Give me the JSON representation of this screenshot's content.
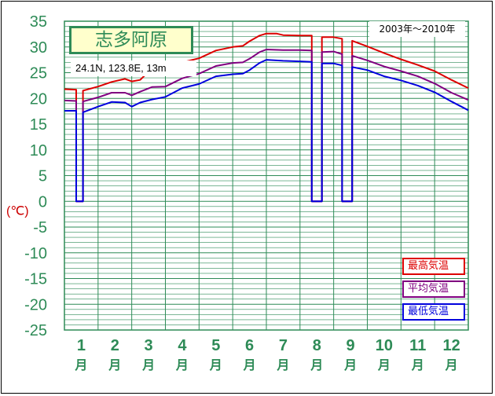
{
  "title": "志多阿原",
  "location": "24.1N, 123.8E, 13m",
  "period": "2003年〜2010年",
  "unit_label": "(℃)",
  "colors": {
    "max": "#dd0000",
    "mean": "#800080",
    "min": "#0000dd",
    "grid": "#2e8b57",
    "text": "#2e8b57"
  },
  "chart_data": {
    "type": "line",
    "title": "志多阿原",
    "ylim": [
      -25,
      35
    ],
    "yticks": [
      "35",
      "30",
      "25",
      "20",
      "15",
      "10",
      "5",
      "0",
      "-5",
      "-10",
      "-15",
      "-20",
      "-25"
    ],
    "xticks": [
      "1",
      "2",
      "3",
      "4",
      "5",
      "6",
      "7",
      "8",
      "9",
      "10",
      "11",
      "12"
    ],
    "x_unit": "月",
    "grid": true,
    "legend": "bottom-right",
    "series": [
      {
        "name": "最高気温",
        "color": "#dd0000",
        "points": [
          [
            0,
            21.8
          ],
          [
            0.35,
            21.7
          ],
          [
            0.35,
            0
          ],
          [
            0.55,
            0
          ],
          [
            0.55,
            21.5
          ],
          [
            1.0,
            22.3
          ],
          [
            1.4,
            23.2
          ],
          [
            1.8,
            23.8
          ],
          [
            2.0,
            23.3
          ],
          [
            2.25,
            23.6
          ],
          [
            2.55,
            25.5
          ],
          [
            3.0,
            25.6
          ],
          [
            3.2,
            26.4
          ],
          [
            3.5,
            27
          ],
          [
            4.0,
            27.8
          ],
          [
            4.5,
            29.3
          ],
          [
            5.0,
            30
          ],
          [
            5.3,
            30.2
          ],
          [
            5.5,
            31.1
          ],
          [
            5.8,
            32.2
          ],
          [
            6.0,
            32.6
          ],
          [
            6.3,
            32.6
          ],
          [
            6.5,
            32.3
          ],
          [
            7.0,
            32.2
          ],
          [
            7.35,
            32.2
          ],
          [
            7.35,
            0
          ],
          [
            7.65,
            0
          ],
          [
            7.65,
            31.9
          ],
          [
            8.0,
            31.9
          ],
          [
            8.25,
            31.6
          ],
          [
            8.25,
            0
          ],
          [
            8.55,
            0
          ],
          [
            8.55,
            31.2
          ],
          [
            9.0,
            30.1
          ],
          [
            9.5,
            28.8
          ],
          [
            10.0,
            27.6
          ],
          [
            10.5,
            26.5
          ],
          [
            11.0,
            25.3
          ],
          [
            11.5,
            23.6
          ],
          [
            12.0,
            22
          ]
        ]
      },
      {
        "name": "平均気温",
        "color": "#800080",
        "points": [
          [
            0,
            19.6
          ],
          [
            0.35,
            19.5
          ],
          [
            0.35,
            0
          ],
          [
            0.55,
            0
          ],
          [
            0.55,
            19.4
          ],
          [
            1.0,
            20.2
          ],
          [
            1.4,
            21.1
          ],
          [
            1.8,
            21.1
          ],
          [
            2.0,
            20.6
          ],
          [
            2.25,
            21.3
          ],
          [
            2.6,
            22.2
          ],
          [
            3.0,
            22.3
          ],
          [
            3.5,
            23.9
          ],
          [
            4.0,
            24.8
          ],
          [
            4.5,
            26.3
          ],
          [
            5.0,
            26.9
          ],
          [
            5.3,
            27
          ],
          [
            5.5,
            27.7
          ],
          [
            5.8,
            29
          ],
          [
            6.0,
            29.5
          ],
          [
            6.5,
            29.4
          ],
          [
            7.0,
            29.4
          ],
          [
            7.35,
            29.3
          ],
          [
            7.35,
            0
          ],
          [
            7.65,
            0
          ],
          [
            7.65,
            29
          ],
          [
            8.0,
            29.1
          ],
          [
            8.25,
            28.6
          ],
          [
            8.25,
            0
          ],
          [
            8.55,
            0
          ],
          [
            8.55,
            28.3
          ],
          [
            9.0,
            27.4
          ],
          [
            9.5,
            26.2
          ],
          [
            10.0,
            25.3
          ],
          [
            10.5,
            24.3
          ],
          [
            11.0,
            22.9
          ],
          [
            11.5,
            21.1
          ],
          [
            12.0,
            19.7
          ]
        ]
      },
      {
        "name": "最低気温",
        "color": "#0000dd",
        "points": [
          [
            0,
            17.6
          ],
          [
            0.35,
            17.6
          ],
          [
            0.35,
            0
          ],
          [
            0.55,
            0
          ],
          [
            0.55,
            17.3
          ],
          [
            1.0,
            18.4
          ],
          [
            1.4,
            19.3
          ],
          [
            1.8,
            19.2
          ],
          [
            2.0,
            18.4
          ],
          [
            2.25,
            19.2
          ],
          [
            2.6,
            19.8
          ],
          [
            3.0,
            20.3
          ],
          [
            3.5,
            22
          ],
          [
            4.0,
            22.8
          ],
          [
            4.5,
            24.3
          ],
          [
            5.0,
            24.7
          ],
          [
            5.3,
            24.8
          ],
          [
            5.5,
            25.5
          ],
          [
            5.8,
            26.9
          ],
          [
            6.0,
            27.5
          ],
          [
            6.5,
            27.3
          ],
          [
            7.0,
            27.2
          ],
          [
            7.35,
            27.1
          ],
          [
            7.35,
            0
          ],
          [
            7.65,
            0
          ],
          [
            7.65,
            26.8
          ],
          [
            8.0,
            26.8
          ],
          [
            8.25,
            26.4
          ],
          [
            8.25,
            0
          ],
          [
            8.55,
            0
          ],
          [
            8.55,
            26.1
          ],
          [
            9.0,
            25.5
          ],
          [
            9.5,
            24.3
          ],
          [
            10.0,
            23.5
          ],
          [
            10.5,
            22.5
          ],
          [
            11.0,
            21.2
          ],
          [
            11.5,
            19.4
          ],
          [
            12.0,
            17.7
          ]
        ]
      }
    ]
  }
}
